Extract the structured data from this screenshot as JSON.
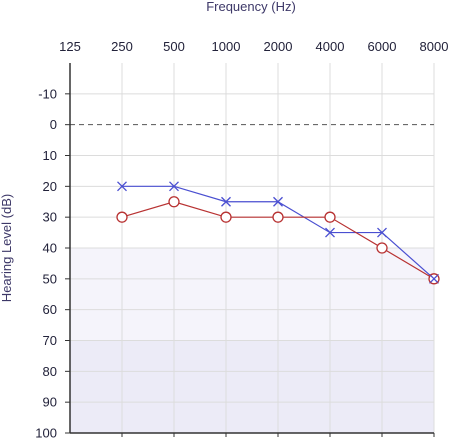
{
  "chart_data": {
    "type": "line",
    "xlabel": "Frequency (Hz)",
    "ylabel": "Hearing Level (dB)",
    "x_ticks": [
      "125",
      "250",
      "500",
      "1000",
      "2000",
      "4000",
      "6000",
      "8000"
    ],
    "y_ticks": [
      "-10",
      "0",
      "10",
      "20",
      "30",
      "40",
      "50",
      "60",
      "70",
      "80",
      "90",
      "100"
    ],
    "ylim": [
      -20,
      100
    ],
    "y_inverted": true,
    "zero_reference_line": 0,
    "shaded_bands": [
      {
        "from": 40,
        "to": 70,
        "color": "#f5f4fb"
      },
      {
        "from": 70,
        "to": 100,
        "color": "#ecebf7"
      }
    ],
    "series": [
      {
        "marker": "x",
        "color": "#4a4fd1",
        "x": [
          "250",
          "500",
          "1000",
          "2000",
          "4000",
          "6000",
          "8000"
        ],
        "values": [
          20,
          20,
          25,
          25,
          35,
          35,
          50
        ]
      },
      {
        "marker": "circle",
        "color": "#b83232",
        "x": [
          "250",
          "500",
          "1000",
          "2000",
          "4000",
          "6000",
          "8000"
        ],
        "values": [
          30,
          25,
          30,
          30,
          30,
          40,
          50
        ]
      }
    ]
  }
}
